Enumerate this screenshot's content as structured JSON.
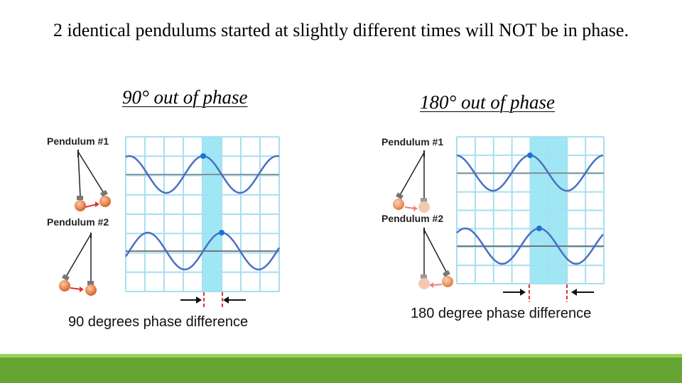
{
  "slide": {
    "title": "2 identical pendulums started at slightly different times will NOT be in phase."
  },
  "left_figure": {
    "subtitle": "90° out of phase",
    "pendulum_1_label": "Pendulum #1",
    "pendulum_2_label": "Pendulum #2",
    "caption": "90 degrees phase difference",
    "phase_offset_degrees": 90
  },
  "right_figure": {
    "subtitle": "180° out of phase",
    "pendulum_1_label": "Pendulum #1",
    "pendulum_2_label": "Pendulum #2",
    "caption": "180 degree phase difference",
    "phase_offset_degrees": 180
  },
  "colors": {
    "wave": "#4a6fc2",
    "grid": "#a6dff0",
    "highlight": "#7fdff0",
    "marker": "#1a73d9",
    "footer": "#66a533",
    "footer_accent": "#9bd15e"
  }
}
